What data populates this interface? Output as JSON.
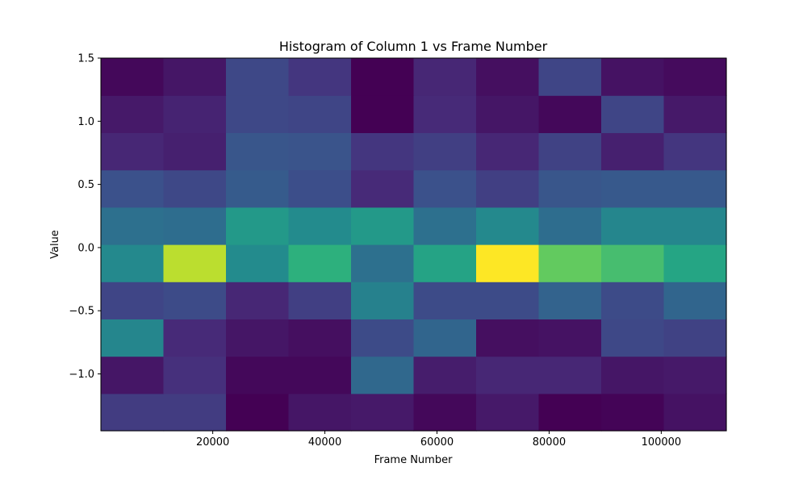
{
  "chart_data": {
    "type": "heatmap",
    "title": "Histogram of Column 1 vs Frame Number",
    "xlabel": "Frame Number",
    "ylabel": "Value",
    "x_edges": [
      44,
      11200,
      22356,
      33512,
      44668,
      55824,
      66980,
      78136,
      89292,
      100448,
      111604
    ],
    "y_edges": [
      -1.45,
      -1.155,
      -0.86,
      -0.565,
      -0.27,
      0.025,
      0.32,
      0.615,
      0.91,
      1.205,
      1.5
    ],
    "xlim": [
      44,
      111604
    ],
    "ylim": [
      -1.45,
      1.5
    ],
    "x_ticks": [
      20000,
      40000,
      60000,
      80000,
      100000
    ],
    "x_tick_labels": [
      "20000",
      "40000",
      "60000",
      "80000",
      "100000"
    ],
    "y_ticks": [
      -1.0,
      -0.5,
      0.0,
      0.5,
      1.0,
      1.5
    ],
    "y_tick_labels": [
      "−1.0",
      "−0.5",
      "0.0",
      "0.5",
      "1.0",
      "1.5"
    ],
    "colormap": "viridis",
    "counts_max": 100,
    "counts": [
      [
        18,
        18,
        0,
        6,
        7,
        2,
        7,
        0,
        1,
        5
      ],
      [
        6,
        14,
        2,
        2,
        34,
        8,
        11,
        11,
        6,
        7
      ],
      [
        46,
        12,
        6,
        4,
        23,
        33,
        4,
        5,
        22,
        20
      ],
      [
        21,
        23,
        11,
        19,
        44,
        23,
        23,
        32,
        23,
        33
      ],
      [
        47,
        90,
        48,
        64,
        37,
        58,
        100,
        76,
        70,
        59
      ],
      [
        37,
        36,
        54,
        48,
        54,
        37,
        47,
        36,
        46,
        46
      ],
      [
        25,
        22,
        29,
        24,
        12,
        25,
        19,
        27,
        28,
        28
      ],
      [
        11,
        9,
        27,
        26,
        16,
        19,
        11,
        20,
        9,
        16
      ],
      [
        7,
        10,
        22,
        21,
        0,
        12,
        6,
        2,
        21,
        7
      ],
      [
        2,
        6,
        22,
        16,
        0,
        11,
        4,
        21,
        5,
        3
      ]
    ]
  }
}
